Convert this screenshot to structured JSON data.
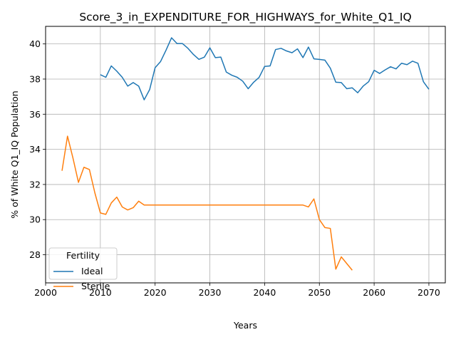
{
  "chart_data": {
    "type": "line",
    "title": "Score_3_in_EXPENDITURE_FOR_HIGHWAYS_for_White_Q1_IQ",
    "xlabel": "Years",
    "ylabel": "% of White Q1_IQ Population",
    "xlim": [
      2000,
      2073
    ],
    "ylim": [
      26.4,
      41.0
    ],
    "xticks": [
      2000,
      2010,
      2020,
      2030,
      2040,
      2050,
      2060,
      2070
    ],
    "yticks": [
      28,
      30,
      32,
      34,
      36,
      38,
      40
    ],
    "grid": true,
    "legend": {
      "title": "Fertility",
      "placement": "lower-left"
    },
    "series": [
      {
        "name": "Ideal",
        "color": "#1f77b4",
        "x": [
          2010,
          2011,
          2012,
          2013,
          2014,
          2015,
          2016,
          2017,
          2018,
          2019,
          2020,
          2021,
          2022,
          2023,
          2024,
          2025,
          2026,
          2027,
          2028,
          2029,
          2030,
          2031,
          2032,
          2033,
          2034,
          2035,
          2036,
          2037,
          2038,
          2039,
          2040,
          2041,
          2042,
          2043,
          2044,
          2045,
          2046,
          2047,
          2048,
          2049,
          2050,
          2051,
          2052,
          2053,
          2054,
          2055,
          2056,
          2057,
          2058,
          2059,
          2060,
          2061,
          2062,
          2063,
          2064,
          2065,
          2066,
          2067,
          2068,
          2069,
          2070
        ],
        "values": [
          38.25,
          38.1,
          38.75,
          38.45,
          38.1,
          37.6,
          37.8,
          37.6,
          36.82,
          37.4,
          38.65,
          39.0,
          39.65,
          40.35,
          40.02,
          40.02,
          39.75,
          39.4,
          39.12,
          39.25,
          39.78,
          39.22,
          39.25,
          38.4,
          38.22,
          38.1,
          37.88,
          37.45,
          37.82,
          38.1,
          38.72,
          38.75,
          39.68,
          39.75,
          39.6,
          39.5,
          39.72,
          39.22,
          39.82,
          39.15,
          39.12,
          39.08,
          38.62,
          37.82,
          37.8,
          37.45,
          37.5,
          37.22,
          37.6,
          37.85,
          38.5,
          38.32,
          38.52,
          38.7,
          38.58,
          38.9,
          38.82,
          39.02,
          38.9,
          37.85,
          37.42
        ]
      },
      {
        "name": "Sterile",
        "color": "#ff7f0e",
        "x": [
          2003,
          2004,
          2005,
          2006,
          2007,
          2008,
          2009,
          2010,
          2011,
          2012,
          2013,
          2014,
          2015,
          2016,
          2017,
          2018,
          2019,
          2020,
          2021,
          2022,
          2023,
          2024,
          2025,
          2026,
          2027,
          2028,
          2029,
          2030,
          2031,
          2032,
          2033,
          2034,
          2035,
          2036,
          2037,
          2038,
          2039,
          2040,
          2041,
          2042,
          2043,
          2044,
          2045,
          2046,
          2047,
          2048,
          2049,
          2050,
          2051,
          2052,
          2053,
          2054,
          2055,
          2056
        ],
        "values": [
          32.78,
          34.75,
          33.5,
          32.12,
          32.98,
          32.85,
          31.52,
          30.38,
          30.3,
          30.95,
          31.28,
          30.72,
          30.55,
          30.68,
          31.05,
          30.83,
          30.83,
          30.83,
          30.83,
          30.83,
          30.83,
          30.83,
          30.83,
          30.83,
          30.83,
          30.83,
          30.83,
          30.83,
          30.83,
          30.83,
          30.83,
          30.83,
          30.83,
          30.83,
          30.83,
          30.83,
          30.83,
          30.83,
          30.83,
          30.83,
          30.83,
          30.83,
          30.83,
          30.83,
          30.83,
          30.72,
          31.18,
          30.0,
          29.55,
          29.5,
          27.18,
          27.88,
          27.5,
          27.12
        ]
      }
    ]
  }
}
